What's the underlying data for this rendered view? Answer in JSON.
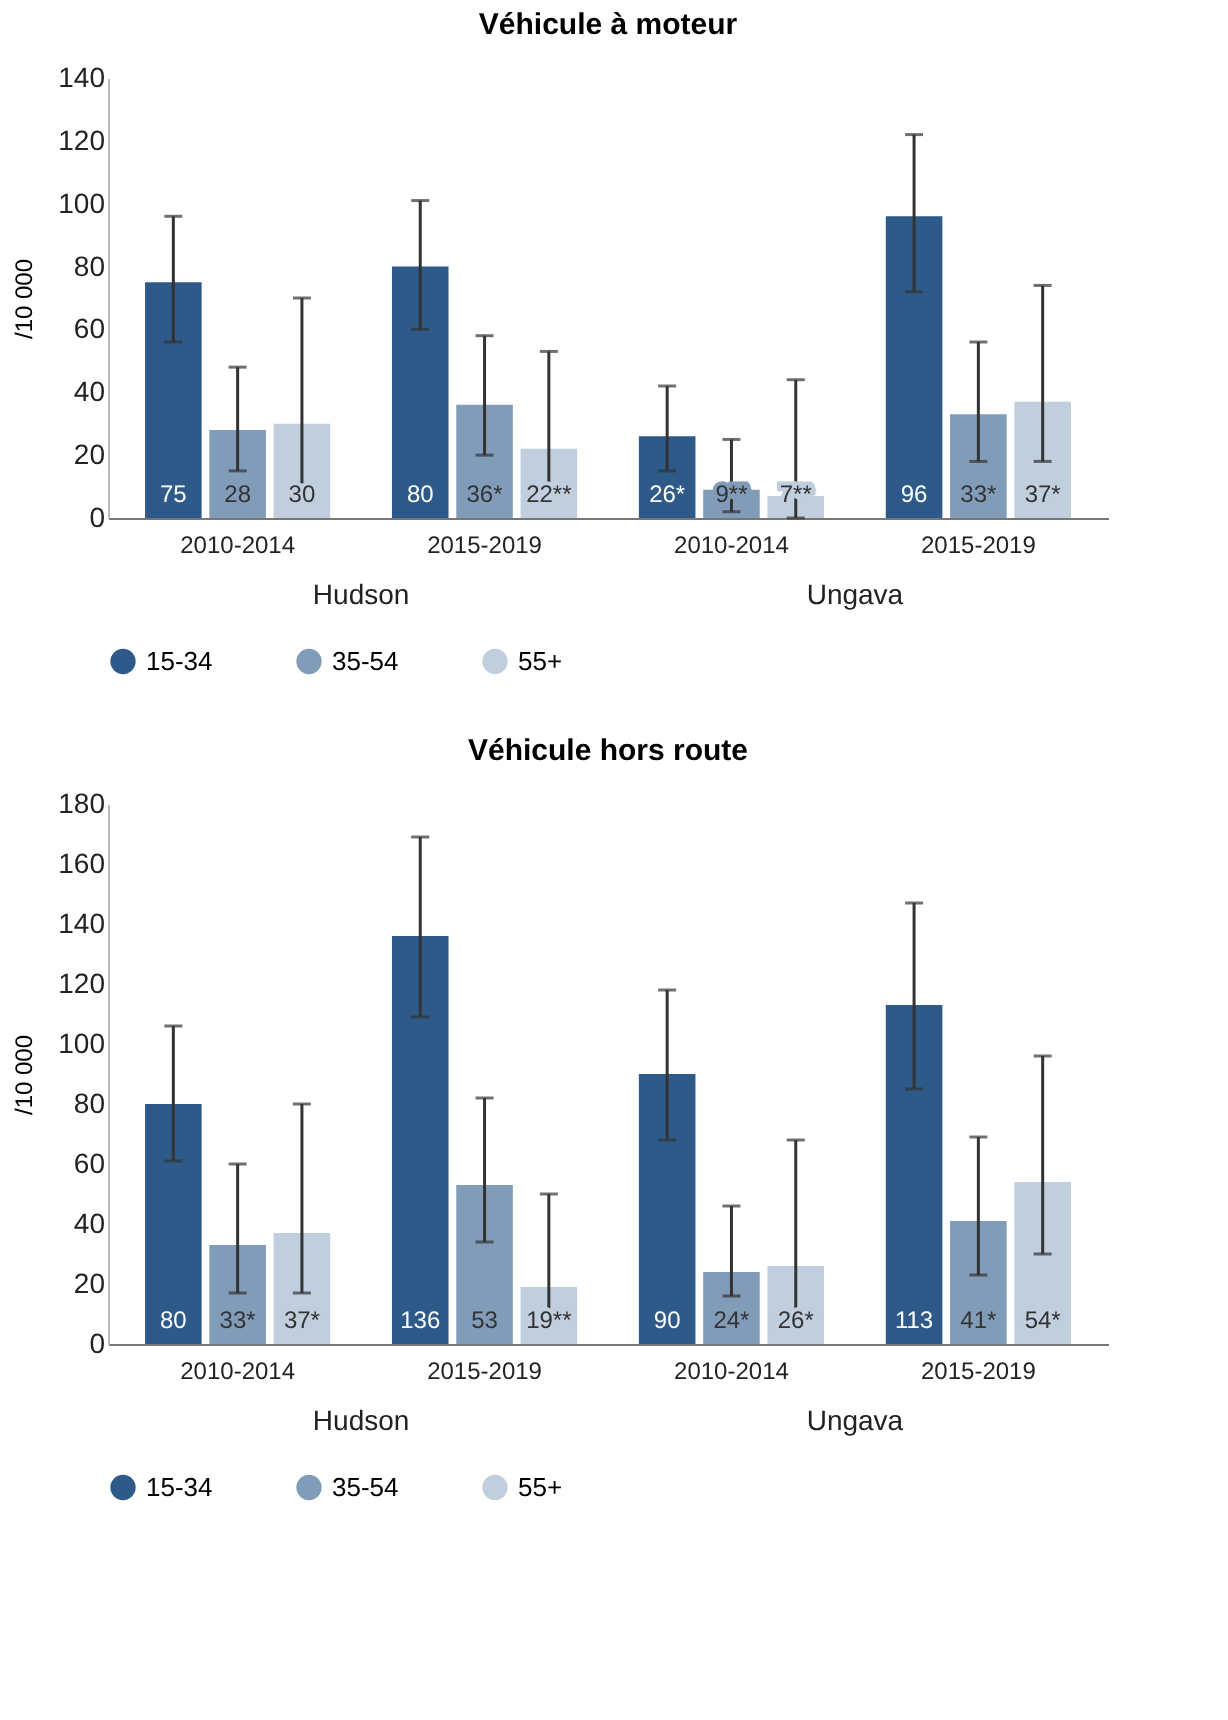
{
  "chart_data": [
    {
      "type": "bar",
      "title": "Véhicule à moteur",
      "ylabel": "/10 000",
      "categories": [
        "2010-2014",
        "2015-2019",
        "2010-2014",
        "2015-2019"
      ],
      "annotations": [
        "Hudson",
        "Ungava"
      ],
      "ylim": [
        0,
        140
      ],
      "yticks": [
        0,
        20,
        40,
        60,
        80,
        100,
        120,
        140
      ],
      "grid": false,
      "legend": "bottom",
      "series": [
        {
          "name": "15-34",
          "color": "#2e5a8a",
          "values": [
            75,
            80,
            26,
            96
          ],
          "errors": [
            [
              56,
              96
            ],
            [
              60,
              101
            ],
            [
              15,
              42
            ],
            [
              72,
              122
            ]
          ],
          "value_labels": [
            "75",
            "80",
            "26*",
            "96"
          ]
        },
        {
          "name": "35-54",
          "color": "#819cb9",
          "values": [
            28,
            36,
            9,
            33
          ],
          "errors": [
            [
              15,
              48
            ],
            [
              20,
              58
            ],
            [
              2,
              25
            ],
            [
              18,
              56
            ]
          ],
          "value_labels": [
            "28",
            "36*",
            "9**",
            "33*"
          ]
        },
        {
          "name": "55+",
          "color": "#c0cedd",
          "values": [
            30,
            22,
            7,
            37
          ],
          "errors": [
            [
              11,
              70
            ],
            [
              8,
              53
            ],
            [
              0,
              44
            ],
            [
              18,
              74
            ]
          ],
          "value_labels": [
            "30",
            "22**",
            "7**",
            "37*"
          ]
        }
      ]
    },
    {
      "type": "bar",
      "title": "Véhicule hors route",
      "ylabel": "/10 000",
      "categories": [
        "2010-2014",
        "2015-2019",
        "2010-2014",
        "2015-2019"
      ],
      "annotations": [
        "Hudson",
        "Ungava"
      ],
      "ylim": [
        0,
        180
      ],
      "yticks": [
        0,
        20,
        40,
        60,
        80,
        100,
        120,
        140,
        160,
        180
      ],
      "grid": false,
      "legend": "bottom",
      "series": [
        {
          "name": "15-34",
          "color": "#2e5a8a",
          "values": [
            80,
            136,
            90,
            113
          ],
          "errors": [
            [
              61,
              106
            ],
            [
              109,
              169
            ],
            [
              68,
              118
            ],
            [
              85,
              147
            ]
          ],
          "value_labels": [
            "80",
            "136",
            "90",
            "113"
          ]
        },
        {
          "name": "35-54",
          "color": "#819cb9",
          "values": [
            33,
            53,
            24,
            41
          ],
          "errors": [
            [
              17,
              60
            ],
            [
              34,
              82
            ],
            [
              16,
              46
            ],
            [
              23,
              69
            ]
          ],
          "value_labels": [
            "33*",
            "53",
            "24*",
            "41*"
          ]
        },
        {
          "name": "55+",
          "color": "#c0cedd",
          "values": [
            37,
            19,
            26,
            54
          ],
          "errors": [
            [
              17,
              80
            ],
            [
              7,
              50
            ],
            [
              9,
              68
            ],
            [
              30,
              96
            ]
          ],
          "value_labels": [
            "37*",
            "19**",
            "26*",
            "54*"
          ]
        }
      ]
    }
  ]
}
